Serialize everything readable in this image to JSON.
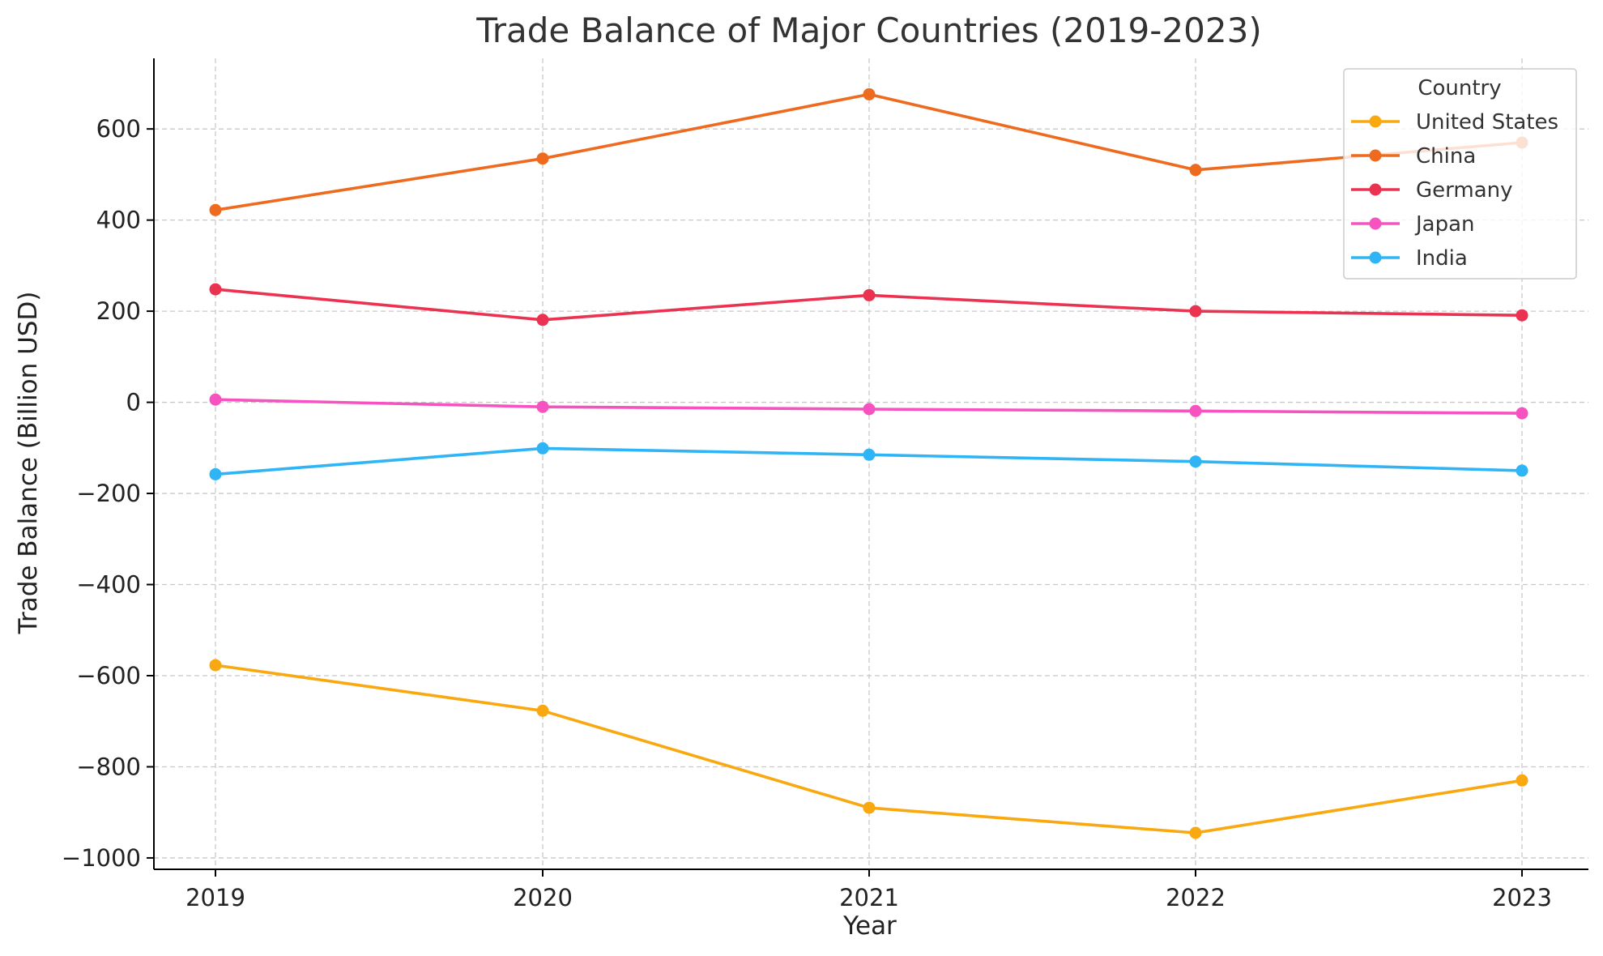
{
  "chart_data": {
    "type": "line",
    "title": "Trade Balance of Major Countries (2019-2023)",
    "xlabel": "Year",
    "ylabel": "Trade Balance (Billion USD)",
    "x": [
      2019,
      2020,
      2021,
      2022,
      2023
    ],
    "x_tick_labels": [
      "2019",
      "2020",
      "2021",
      "2022",
      "2023"
    ],
    "ylim": [
      -1025,
      755
    ],
    "y_ticks": [
      600,
      400,
      200,
      0,
      -200,
      -400,
      -600,
      -800,
      -1000
    ],
    "y_tick_labels": [
      "600",
      "400",
      "200",
      "0",
      "−200",
      "−400",
      "−600",
      "−800",
      "−1000"
    ],
    "grid": true,
    "legend": {
      "title": "Country",
      "placement": "top-right"
    },
    "series": [
      {
        "name": "United States",
        "color": "#F9A80F",
        "values": [
          -577,
          -677,
          -890,
          -945,
          -830
        ]
      },
      {
        "name": "China",
        "color": "#EE6A1F",
        "values": [
          422,
          535,
          676,
          510,
          570
        ]
      },
      {
        "name": "Germany",
        "color": "#EC3251",
        "values": [
          248,
          181,
          235,
          200,
          191
        ]
      },
      {
        "name": "Japan",
        "color": "#F652C0",
        "values": [
          6,
          -10,
          -15,
          -19,
          -24
        ]
      },
      {
        "name": "India",
        "color": "#2FB5F5",
        "values": [
          -158,
          -101,
          -115,
          -130,
          -150
        ]
      }
    ]
  }
}
